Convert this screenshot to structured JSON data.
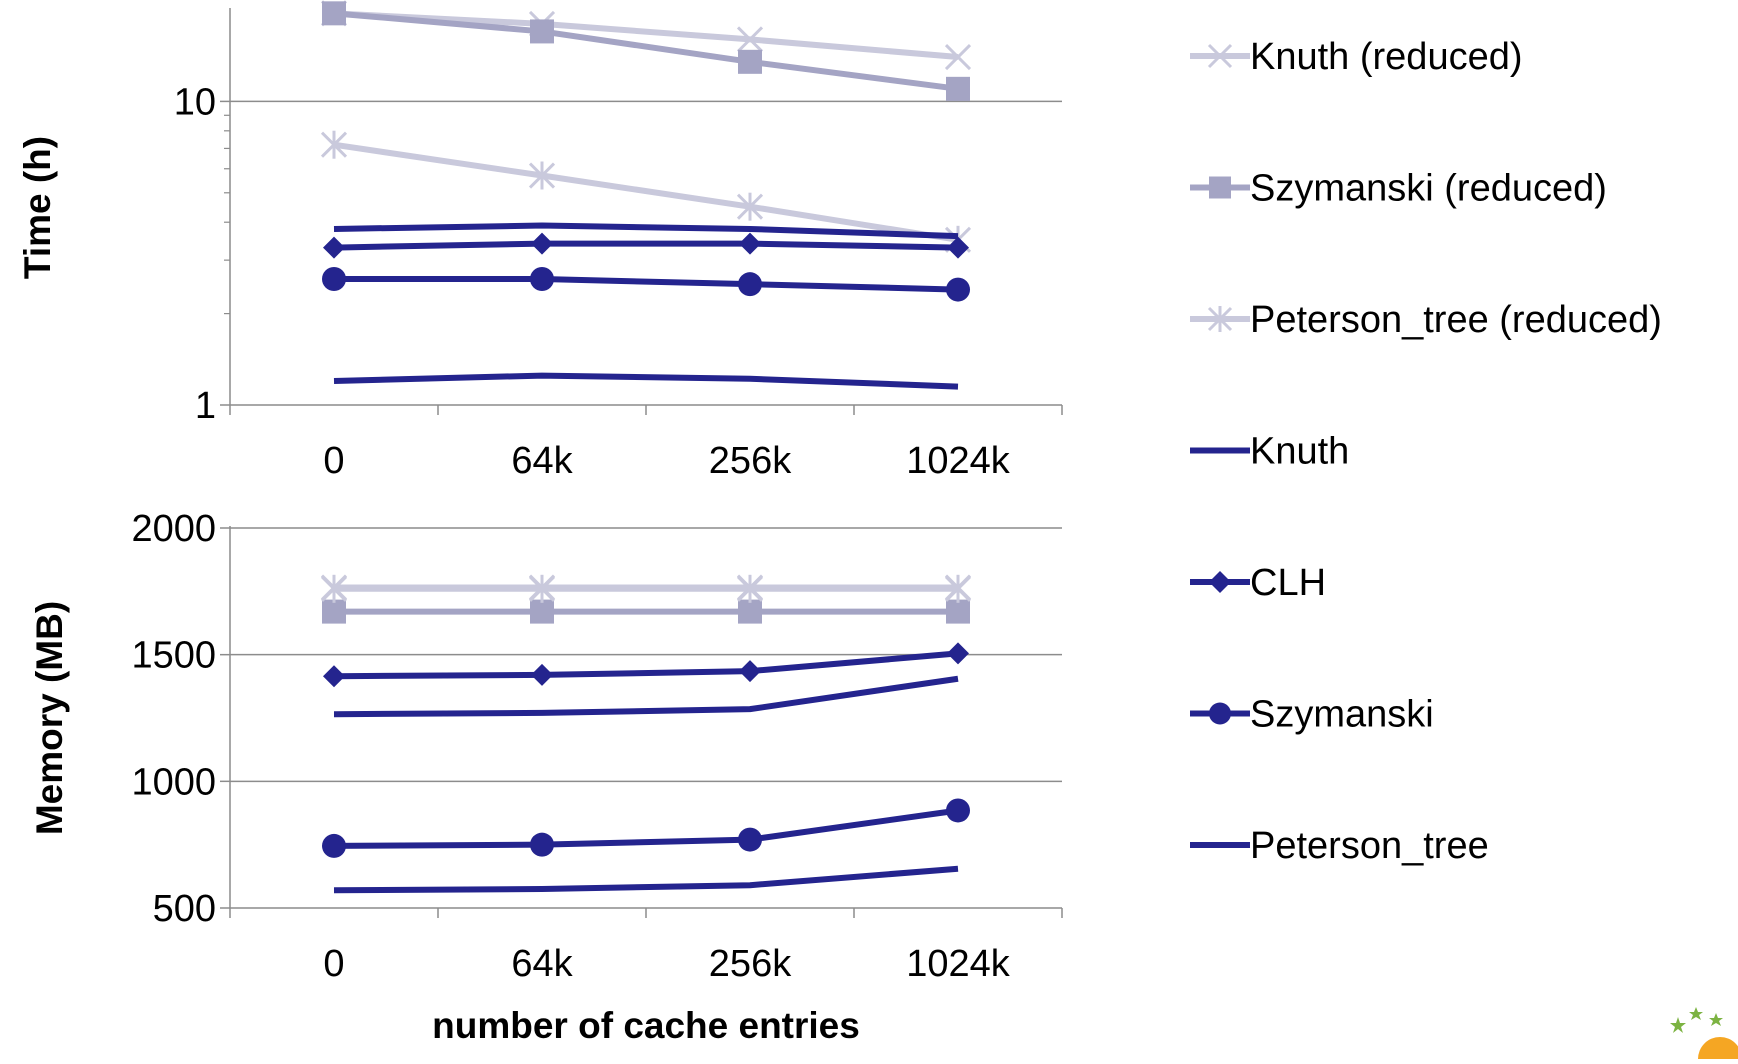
{
  "colors": {
    "reduced_knuth": "#C9C9DC",
    "reduced_szymanski": "#A4A4C4",
    "reduced_peterson": "#C9C9DC",
    "full": "#24248E",
    "grid": "#8C8C8C",
    "axis": "#8C8C8C"
  },
  "legend": [
    {
      "label": "Knuth (reduced)",
      "marker": "x",
      "color_key": "reduced_knuth"
    },
    {
      "label": "Szymanski (reduced)",
      "marker": "square",
      "color_key": "reduced_szymanski"
    },
    {
      "label": "Peterson_tree (reduced)",
      "marker": "star",
      "color_key": "reduced_peterson"
    },
    {
      "label": "Knuth",
      "marker": "none",
      "color_key": "full"
    },
    {
      "label": "CLH",
      "marker": "diamond",
      "color_key": "full"
    },
    {
      "label": "Szymanski",
      "marker": "circle",
      "color_key": "full"
    },
    {
      "label": "Peterson_tree",
      "marker": "none",
      "color_key": "full"
    }
  ],
  "chart_data": [
    {
      "type": "line",
      "ylabel": "Time (h)",
      "xlabel": "",
      "yscale": "log",
      "ylim": [
        1,
        20
      ],
      "yticks": [
        {
          "value": 1,
          "label": "1"
        },
        {
          "value": 10,
          "label": "10"
        }
      ],
      "categories": [
        "0",
        "64k",
        "256k",
        "1024k"
      ],
      "grid": true,
      "legend_position": "right",
      "series": [
        {
          "name": "Knuth (reduced)",
          "marker": "x",
          "color_key": "reduced_knuth",
          "values": [
            19.5,
            18,
            16,
            14
          ]
        },
        {
          "name": "Szymanski (reduced)",
          "marker": "square",
          "color_key": "reduced_szymanski",
          "values": [
            19.5,
            17,
            13.5,
            11
          ]
        },
        {
          "name": "Peterson_tree (reduced)",
          "marker": "star",
          "color_key": "reduced_peterson",
          "values": [
            7.2,
            5.7,
            4.5,
            3.5
          ]
        },
        {
          "name": "Knuth",
          "marker": "none",
          "color_key": "full",
          "values": [
            3.8,
            3.9,
            3.8,
            3.6
          ]
        },
        {
          "name": "CLH",
          "marker": "diamond",
          "color_key": "full",
          "values": [
            3.3,
            3.4,
            3.4,
            3.3
          ]
        },
        {
          "name": "Szymanski",
          "marker": "circle",
          "color_key": "full",
          "values": [
            2.6,
            2.6,
            2.5,
            2.4
          ]
        },
        {
          "name": "Peterson_tree",
          "marker": "none",
          "color_key": "full",
          "values": [
            1.2,
            1.25,
            1.22,
            1.15
          ]
        }
      ]
    },
    {
      "type": "line",
      "ylabel": "Memory (MB)",
      "xlabel": "number of cache entries",
      "yscale": "linear",
      "ylim": [
        500,
        2000
      ],
      "yticks": [
        {
          "value": 500,
          "label": "500"
        },
        {
          "value": 1000,
          "label": "1000"
        },
        {
          "value": 1500,
          "label": "1500"
        },
        {
          "value": 2000,
          "label": "2000"
        }
      ],
      "categories": [
        "0",
        "64k",
        "256k",
        "1024k"
      ],
      "grid": true,
      "legend_position": "right",
      "series": [
        {
          "name": "Knuth (reduced)",
          "marker": "x",
          "color_key": "reduced_knuth",
          "values": [
            1765,
            1765,
            1765,
            1765
          ]
        },
        {
          "name": "Szymanski (reduced)",
          "marker": "square",
          "color_key": "reduced_szymanski",
          "values": [
            1670,
            1670,
            1670,
            1670
          ]
        },
        {
          "name": "Peterson_tree (reduced)",
          "marker": "star",
          "color_key": "reduced_peterson",
          "values": [
            1760,
            1760,
            1760,
            1760
          ]
        },
        {
          "name": "Knuth",
          "marker": "none",
          "color_key": "full",
          "values": [
            1265,
            1270,
            1285,
            1405
          ]
        },
        {
          "name": "CLH",
          "marker": "diamond",
          "color_key": "full",
          "values": [
            1415,
            1420,
            1435,
            1505
          ]
        },
        {
          "name": "Szymanski",
          "marker": "circle",
          "color_key": "full",
          "values": [
            745,
            750,
            770,
            885
          ]
        },
        {
          "name": "Peterson_tree",
          "marker": "none",
          "color_key": "full",
          "values": [
            570,
            575,
            590,
            655
          ]
        }
      ]
    }
  ]
}
